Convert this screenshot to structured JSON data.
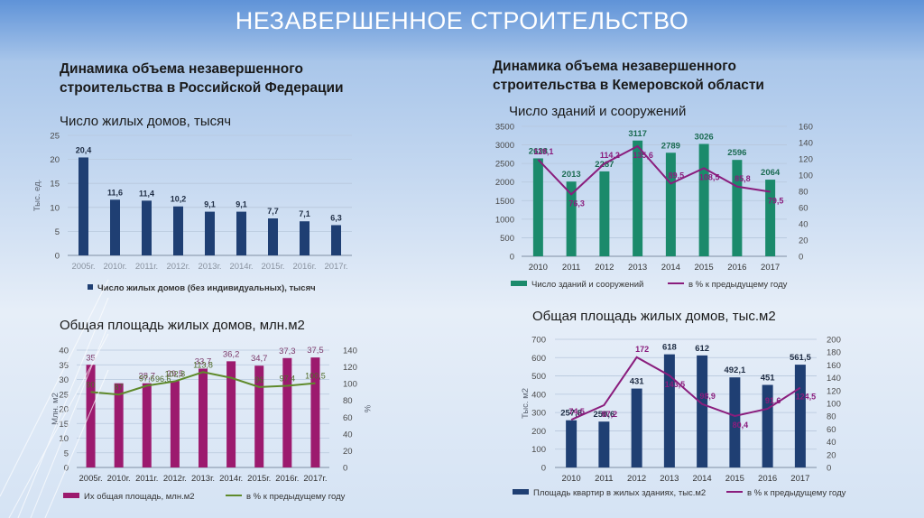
{
  "page": {
    "title": "НЕЗАВЕРШЕННОЕ СТРОИТЕЛЬСТВО",
    "left_heading": "Динамика объема незавершенного строительства в Российской Федерации",
    "right_heading": "Динамика объема незавершенного строительства в Кемеровской области"
  },
  "chart_data": [
    {
      "type": "bar",
      "title": "Число жилых домов, тысяч",
      "ylabel": "Тыс. ед.",
      "ylim": [
        0,
        25
      ],
      "yticks": [
        0,
        5,
        10,
        15,
        20,
        25
      ],
      "categories": [
        "2005г.",
        "2010г.",
        "2011г.",
        "2012г.",
        "2013г.",
        "2014г.",
        "2015г.",
        "2016г.",
        "2017г."
      ],
      "series": [
        {
          "name": "Число жилых домов  (без индивидуальных), тысяч",
          "values": [
            20.4,
            11.6,
            11.4,
            10.2,
            9.1,
            9.1,
            7.7,
            7.1,
            6.3
          ],
          "labels": [
            "20,4",
            "11,6",
            "11,4",
            "10,2",
            "9,1",
            "9,1",
            "7,7",
            "7,1",
            "6,3"
          ],
          "color": "#1f3f73"
        }
      ]
    },
    {
      "type": "bar",
      "title": "Число зданий и сооружений",
      "ylim": [
        0,
        3500
      ],
      "yticks": [
        0,
        500,
        1000,
        1500,
        2000,
        2500,
        3000,
        3500
      ],
      "y2lim": [
        0,
        160
      ],
      "y2ticks": [
        0,
        20,
        40,
        60,
        80,
        100,
        120,
        140,
        160
      ],
      "categories": [
        "2010",
        "2011",
        "2012",
        "2013",
        "2014",
        "2015",
        "2016",
        "2017"
      ],
      "series": [
        {
          "name": "Число зданий и сооружений",
          "axis": "left",
          "values": [
            2638,
            2013,
            2287,
            3117,
            2789,
            3026,
            2596,
            2064
          ],
          "labels": [
            "2638",
            "2013",
            "2287",
            "3117",
            "2789",
            "3026",
            "2596",
            "2064"
          ],
          "color": "#1b8a6b"
        },
        {
          "name": "в % к предыдущему году",
          "axis": "right",
          "kind": "line",
          "values": [
            119.1,
            76.3,
            114.2,
            135.6,
            89.5,
            108.5,
            85.8,
            79.5
          ],
          "labels": [
            "119,1",
            "76,3",
            "114,2",
            "135,6",
            "89,5",
            "108,5",
            "85,8",
            "79,5"
          ],
          "color": "#8a1d7d"
        }
      ]
    },
    {
      "type": "bar",
      "title": "Общая площадь жилых домов, млн.м2",
      "ylabel": "Млн. м2",
      "y2label": "%",
      "ylim": [
        0,
        40
      ],
      "yticks": [
        0,
        5,
        10,
        15,
        20,
        25,
        30,
        35,
        40
      ],
      "y2lim": [
        0,
        140
      ],
      "y2ticks": [
        0,
        20,
        40,
        60,
        80,
        100,
        120,
        140
      ],
      "categories": [
        "2005г.",
        "2010г.",
        "2011г.",
        "2012г.",
        "2013г.",
        "2014г.",
        "2015г.",
        "2016г.",
        "2017г."
      ],
      "series": [
        {
          "name": "Их общая площадь, млн.м2",
          "axis": "left",
          "values": [
            35,
            28.7,
            28.7,
            29.5,
            33.7,
            36.2,
            34.7,
            37.3,
            37.5
          ],
          "labels": [
            "35",
            "",
            "28,7",
            "29,5",
            "33,7",
            "36,2",
            "34,7",
            "37,3",
            "37,5"
          ],
          "color": "#9c1a6e"
        },
        {
          "name": "в % к предыдущему году",
          "axis": "right",
          "kind": "line",
          "values": [
            90,
            87,
            97.6,
            102.8,
            113.8,
            107,
            96,
            97.4,
            100.5
          ],
          "labels": [
            "90",
            "87",
            "97,6",
            "102,8",
            "113,8",
            "",
            "96",
            "97,4",
            "100,5"
          ],
          "extra_labels": [
            "96,6"
          ],
          "color": "#5f8a2b"
        }
      ]
    },
    {
      "type": "bar",
      "title": "Общая площадь жилых домов, тыс.м2",
      "ylabel": "Тыс. м2",
      "y2label": "%",
      "ylim": [
        0,
        700
      ],
      "yticks": [
        0,
        100,
        200,
        300,
        400,
        500,
        600,
        700
      ],
      "y2lim": [
        0,
        200
      ],
      "y2ticks": [
        0,
        20,
        40,
        60,
        80,
        100,
        120,
        140,
        160,
        180,
        200
      ],
      "categories": [
        "2010",
        "2011",
        "2012",
        "2013",
        "2014",
        "2015",
        "2016",
        "2017"
      ],
      "series": [
        {
          "name": "Площадь квартир в жилых зданиях, тыс.м2",
          "axis": "left",
          "values": [
            257.8,
            250.6,
            431,
            618,
            612,
            492.1,
            451,
            561.5
          ],
          "labels": [
            "257,8",
            "250,6",
            "431",
            "618",
            "612",
            "492,1",
            "451",
            "561,5"
          ],
          "color": "#1f3f73"
        },
        {
          "name": "в % к предыдущему году",
          "axis": "right",
          "kind": "line",
          "values": [
            74.5,
            97.2,
            172,
            143.5,
            98.9,
            80.4,
            91.6,
            124.5
          ],
          "labels": [
            "74,5",
            "97,2",
            "172",
            "143,5",
            "98,9",
            "80,4",
            "91,6",
            "124,5"
          ],
          "color": "#8a1d7d"
        }
      ]
    }
  ]
}
